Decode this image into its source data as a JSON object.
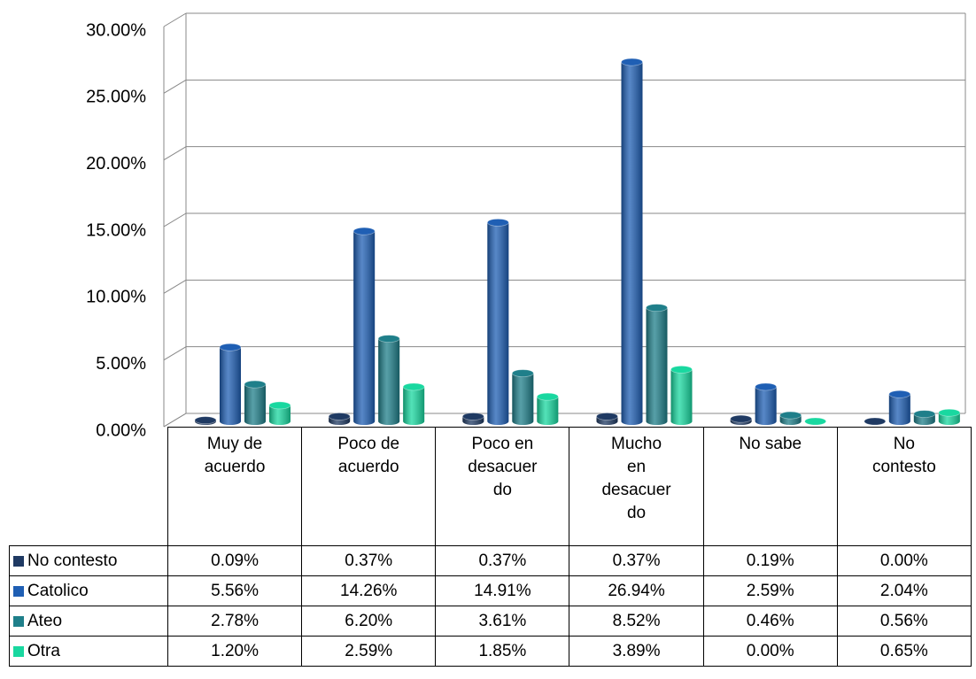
{
  "chart_data": {
    "type": "bar3d",
    "categories": [
      "Muy de acuerdo",
      "Poco de acuerdo",
      "Poco en desacuerdo",
      "Mucho en desacuerdo",
      "No sabe",
      "No contesto"
    ],
    "series": [
      {
        "name": "No contesto",
        "color": "#1f3a63",
        "values": [
          0.09,
          0.37,
          0.37,
          0.37,
          0.19,
          0.0
        ],
        "value_labels": [
          "0.09%",
          "0.37%",
          "0.37%",
          "0.37%",
          "0.19%",
          "0.00%"
        ]
      },
      {
        "name": "Catolico",
        "color": "#1f5fb4",
        "values": [
          5.56,
          14.26,
          14.91,
          26.94,
          2.59,
          2.04
        ],
        "value_labels": [
          "5.56%",
          "14.26%",
          "14.91%",
          "26.94%",
          "2.59%",
          "2.04%"
        ]
      },
      {
        "name": "Ateo",
        "color": "#1f7f8a",
        "values": [
          2.78,
          6.2,
          3.61,
          8.52,
          0.46,
          0.56
        ],
        "value_labels": [
          "2.78%",
          "6.20%",
          "3.61%",
          "8.52%",
          "0.46%",
          "0.56%"
        ]
      },
      {
        "name": "Otra",
        "color": "#19d8a0",
        "values": [
          1.2,
          2.59,
          1.85,
          3.89,
          0.0,
          0.65
        ],
        "value_labels": [
          "1.20%",
          "2.59%",
          "1.85%",
          "3.89%",
          "0.00%",
          "0.65%"
        ]
      }
    ],
    "ylim": [
      0,
      30
    ],
    "yticks": [
      {
        "value": 0,
        "label": "0.00%"
      },
      {
        "value": 5,
        "label": "5.00%"
      },
      {
        "value": 10,
        "label": "10.00%"
      },
      {
        "value": 15,
        "label": "15.00%"
      },
      {
        "value": 20,
        "label": "20.00%"
      },
      {
        "value": 25,
        "label": "25.00%"
      },
      {
        "value": 30,
        "label": "30.00%"
      }
    ],
    "grid": true
  }
}
